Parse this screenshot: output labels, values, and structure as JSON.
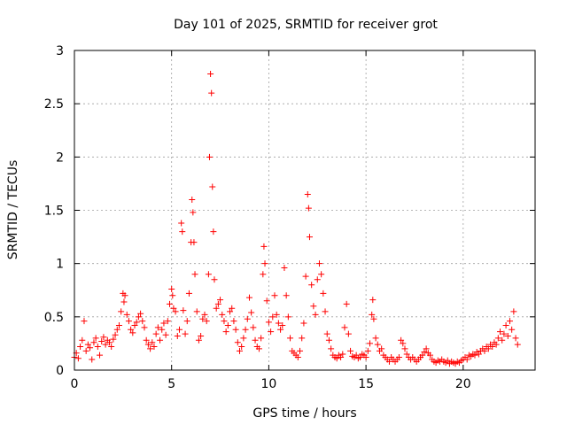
{
  "chart_data": {
    "type": "scatter",
    "title": "Day 101 of 2025, SRMTID for receiver grot",
    "xlabel": "GPS time / hours",
    "ylabel": "SRMTID / TECUs",
    "xlim": [
      0,
      23.7
    ],
    "ylim": [
      0,
      3
    ],
    "xticks": [
      0,
      5,
      10,
      15,
      20
    ],
    "xtick_labels": [
      "0",
      "5",
      "10",
      "15",
      "20"
    ],
    "yticks": [
      0,
      0.5,
      1,
      1.5,
      2,
      2.5,
      3
    ],
    "ytick_labels": [
      "0",
      "0.5",
      "1",
      "1.5",
      "2",
      "2.5",
      "3"
    ],
    "grid": true,
    "marker": "+",
    "series": [
      {
        "name": "SRMTID",
        "color": "#ff0000",
        "points": [
          [
            0.0,
            0.12
          ],
          [
            0.1,
            0.16
          ],
          [
            0.2,
            0.11
          ],
          [
            0.3,
            0.22
          ],
          [
            0.4,
            0.28
          ],
          [
            0.5,
            0.46
          ],
          [
            0.6,
            0.18
          ],
          [
            0.7,
            0.24
          ],
          [
            0.8,
            0.21
          ],
          [
            0.9,
            0.1
          ],
          [
            1.0,
            0.26
          ],
          [
            1.1,
            0.3
          ],
          [
            1.2,
            0.22
          ],
          [
            1.3,
            0.14
          ],
          [
            1.4,
            0.27
          ],
          [
            1.5,
            0.31
          ],
          [
            1.6,
            0.24
          ],
          [
            1.7,
            0.28
          ],
          [
            1.8,
            0.26
          ],
          [
            1.9,
            0.22
          ],
          [
            2.0,
            0.29
          ],
          [
            2.1,
            0.33
          ],
          [
            2.2,
            0.38
          ],
          [
            2.3,
            0.42
          ],
          [
            2.4,
            0.55
          ],
          [
            2.5,
            0.72
          ],
          [
            2.55,
            0.64
          ],
          [
            2.6,
            0.7
          ],
          [
            2.7,
            0.52
          ],
          [
            2.8,
            0.46
          ],
          [
            2.9,
            0.38
          ],
          [
            3.0,
            0.35
          ],
          [
            3.1,
            0.42
          ],
          [
            3.2,
            0.45
          ],
          [
            3.3,
            0.5
          ],
          [
            3.4,
            0.53
          ],
          [
            3.5,
            0.46
          ],
          [
            3.6,
            0.4
          ],
          [
            3.7,
            0.28
          ],
          [
            3.8,
            0.24
          ],
          [
            3.9,
            0.2
          ],
          [
            4.0,
            0.26
          ],
          [
            4.1,
            0.22
          ],
          [
            4.2,
            0.34
          ],
          [
            4.3,
            0.4
          ],
          [
            4.4,
            0.28
          ],
          [
            4.5,
            0.38
          ],
          [
            4.6,
            0.44
          ],
          [
            4.7,
            0.33
          ],
          [
            4.8,
            0.46
          ],
          [
            4.9,
            0.62
          ],
          [
            5.0,
            0.76
          ],
          [
            5.05,
            0.7
          ],
          [
            5.1,
            0.58
          ],
          [
            5.2,
            0.55
          ],
          [
            5.3,
            0.32
          ],
          [
            5.4,
            0.38
          ],
          [
            5.5,
            1.38
          ],
          [
            5.55,
            1.3
          ],
          [
            5.6,
            0.56
          ],
          [
            5.7,
            0.34
          ],
          [
            5.8,
            0.46
          ],
          [
            5.9,
            0.72
          ],
          [
            6.0,
            1.2
          ],
          [
            6.05,
            1.6
          ],
          [
            6.1,
            1.48
          ],
          [
            6.15,
            1.2
          ],
          [
            6.2,
            0.9
          ],
          [
            6.3,
            0.55
          ],
          [
            6.4,
            0.28
          ],
          [
            6.5,
            0.32
          ],
          [
            6.6,
            0.48
          ],
          [
            6.7,
            0.52
          ],
          [
            6.8,
            0.46
          ],
          [
            6.9,
            0.9
          ],
          [
            6.95,
            2.0
          ],
          [
            7.0,
            2.78
          ],
          [
            7.05,
            2.6
          ],
          [
            7.1,
            1.72
          ],
          [
            7.15,
            1.3
          ],
          [
            7.2,
            0.85
          ],
          [
            7.3,
            0.58
          ],
          [
            7.4,
            0.62
          ],
          [
            7.5,
            0.66
          ],
          [
            7.6,
            0.52
          ],
          [
            7.7,
            0.46
          ],
          [
            7.8,
            0.36
          ],
          [
            7.9,
            0.42
          ],
          [
            8.0,
            0.55
          ],
          [
            8.1,
            0.58
          ],
          [
            8.2,
            0.46
          ],
          [
            8.3,
            0.38
          ],
          [
            8.4,
            0.26
          ],
          [
            8.5,
            0.18
          ],
          [
            8.6,
            0.22
          ],
          [
            8.7,
            0.3
          ],
          [
            8.8,
            0.38
          ],
          [
            8.9,
            0.48
          ],
          [
            9.0,
            0.68
          ],
          [
            9.1,
            0.54
          ],
          [
            9.2,
            0.4
          ],
          [
            9.3,
            0.28
          ],
          [
            9.4,
            0.22
          ],
          [
            9.5,
            0.2
          ],
          [
            9.6,
            0.3
          ],
          [
            9.7,
            0.9
          ],
          [
            9.75,
            1.16
          ],
          [
            9.8,
            1.0
          ],
          [
            9.9,
            0.65
          ],
          [
            10.0,
            0.45
          ],
          [
            10.1,
            0.36
          ],
          [
            10.2,
            0.5
          ],
          [
            10.3,
            0.7
          ],
          [
            10.4,
            0.52
          ],
          [
            10.5,
            0.44
          ],
          [
            10.6,
            0.38
          ],
          [
            10.7,
            0.42
          ],
          [
            10.8,
            0.96
          ],
          [
            10.9,
            0.7
          ],
          [
            11.0,
            0.5
          ],
          [
            11.1,
            0.3
          ],
          [
            11.2,
            0.18
          ],
          [
            11.3,
            0.16
          ],
          [
            11.4,
            0.14
          ],
          [
            11.5,
            0.12
          ],
          [
            11.6,
            0.18
          ],
          [
            11.7,
            0.3
          ],
          [
            11.8,
            0.44
          ],
          [
            11.9,
            0.88
          ],
          [
            12.0,
            1.65
          ],
          [
            12.05,
            1.52
          ],
          [
            12.1,
            1.25
          ],
          [
            12.2,
            0.8
          ],
          [
            12.3,
            0.6
          ],
          [
            12.4,
            0.52
          ],
          [
            12.5,
            0.85
          ],
          [
            12.6,
            1.0
          ],
          [
            12.7,
            0.9
          ],
          [
            12.8,
            0.72
          ],
          [
            12.9,
            0.55
          ],
          [
            13.0,
            0.34
          ],
          [
            13.1,
            0.28
          ],
          [
            13.2,
            0.2
          ],
          [
            13.3,
            0.14
          ],
          [
            13.4,
            0.12
          ],
          [
            13.5,
            0.11
          ],
          [
            13.6,
            0.14
          ],
          [
            13.7,
            0.12
          ],
          [
            13.8,
            0.15
          ],
          [
            13.9,
            0.4
          ],
          [
            14.0,
            0.62
          ],
          [
            14.1,
            0.34
          ],
          [
            14.2,
            0.18
          ],
          [
            14.3,
            0.13
          ],
          [
            14.4,
            0.12
          ],
          [
            14.5,
            0.14
          ],
          [
            14.6,
            0.11
          ],
          [
            14.7,
            0.12
          ],
          [
            14.8,
            0.15
          ],
          [
            14.9,
            0.14
          ],
          [
            15.0,
            0.12
          ],
          [
            15.1,
            0.18
          ],
          [
            15.2,
            0.25
          ],
          [
            15.3,
            0.52
          ],
          [
            15.35,
            0.66
          ],
          [
            15.4,
            0.48
          ],
          [
            15.5,
            0.3
          ],
          [
            15.6,
            0.24
          ],
          [
            15.7,
            0.18
          ],
          [
            15.8,
            0.2
          ],
          [
            15.9,
            0.14
          ],
          [
            16.0,
            0.12
          ],
          [
            16.1,
            0.1
          ],
          [
            16.2,
            0.08
          ],
          [
            16.3,
            0.12
          ],
          [
            16.4,
            0.1
          ],
          [
            16.5,
            0.08
          ],
          [
            16.6,
            0.1
          ],
          [
            16.7,
            0.12
          ],
          [
            16.8,
            0.28
          ],
          [
            16.9,
            0.25
          ],
          [
            17.0,
            0.2
          ],
          [
            17.1,
            0.15
          ],
          [
            17.2,
            0.12
          ],
          [
            17.3,
            0.1
          ],
          [
            17.4,
            0.12
          ],
          [
            17.5,
            0.1
          ],
          [
            17.6,
            0.08
          ],
          [
            17.7,
            0.1
          ],
          [
            17.8,
            0.12
          ],
          [
            17.9,
            0.14
          ],
          [
            18.0,
            0.17
          ],
          [
            18.1,
            0.2
          ],
          [
            18.2,
            0.16
          ],
          [
            18.3,
            0.14
          ],
          [
            18.4,
            0.1
          ],
          [
            18.5,
            0.08
          ],
          [
            18.6,
            0.07
          ],
          [
            18.7,
            0.09
          ],
          [
            18.8,
            0.08
          ],
          [
            18.9,
            0.1
          ],
          [
            19.0,
            0.08
          ],
          [
            19.1,
            0.07
          ],
          [
            19.2,
            0.09
          ],
          [
            19.3,
            0.06
          ],
          [
            19.4,
            0.08
          ],
          [
            19.5,
            0.07
          ],
          [
            19.6,
            0.06
          ],
          [
            19.7,
            0.08
          ],
          [
            19.8,
            0.07
          ],
          [
            19.9,
            0.09
          ],
          [
            20.0,
            0.1
          ],
          [
            20.1,
            0.12
          ],
          [
            20.2,
            0.1
          ],
          [
            20.3,
            0.14
          ],
          [
            20.4,
            0.13
          ],
          [
            20.5,
            0.15
          ],
          [
            20.6,
            0.14
          ],
          [
            20.7,
            0.17
          ],
          [
            20.8,
            0.15
          ],
          [
            20.9,
            0.18
          ],
          [
            21.0,
            0.2
          ],
          [
            21.1,
            0.18
          ],
          [
            21.2,
            0.22
          ],
          [
            21.3,
            0.2
          ],
          [
            21.4,
            0.24
          ],
          [
            21.5,
            0.22
          ],
          [
            21.6,
            0.26
          ],
          [
            21.7,
            0.24
          ],
          [
            21.8,
            0.3
          ],
          [
            21.9,
            0.36
          ],
          [
            22.0,
            0.28
          ],
          [
            22.1,
            0.34
          ],
          [
            22.2,
            0.42
          ],
          [
            22.3,
            0.32
          ],
          [
            22.4,
            0.46
          ],
          [
            22.5,
            0.38
          ],
          [
            22.6,
            0.55
          ],
          [
            22.7,
            0.3
          ],
          [
            22.8,
            0.24
          ]
        ]
      }
    ]
  }
}
